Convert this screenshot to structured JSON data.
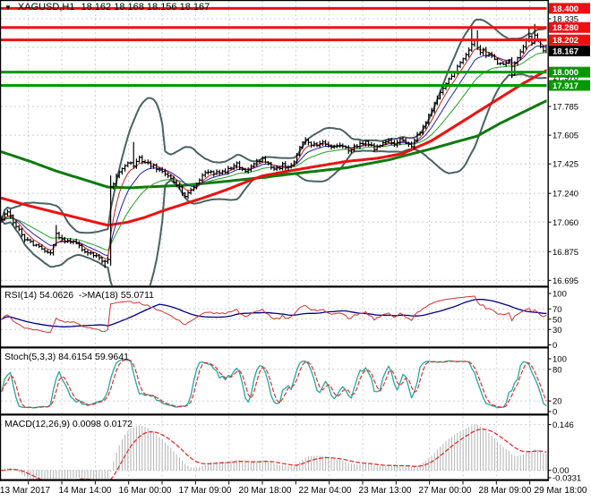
{
  "header": {
    "symbol_period": "XAGUSD,H1",
    "quotes": "18.162 18.168 18.156 18.167",
    "collapse_icon": "triangle-down"
  },
  "colors": {
    "level_red": "#ee1010",
    "level_green": "#009a00",
    "band": "#4a6361",
    "bar_black": "#000000",
    "ma_red": "#ee1010",
    "ma_green": "#0e7a0e",
    "ema_fast_red": "#c82020",
    "ema_mid_blue": "#2222aa",
    "ema_slow_green": "#22a022",
    "rsi_line": "#d23333",
    "rsi_ma": "#000080",
    "stoch_k": "#22a8a0",
    "stoch_d": "#e03030",
    "macd_hist": "#b2b2b2",
    "macd_signal": "#e03030",
    "grid": "#cdcdcd",
    "badge_current_bg": "#000000",
    "badge_text": "#ffffff",
    "axis_text": "#000000"
  },
  "chart_data": {
    "type": "candlestick",
    "symbol": "XAGUSD",
    "timeframe": "H1",
    "ohlc_display": {
      "open": "18.162",
      "high": "18.168",
      "low": "18.156",
      "close": "18.167"
    },
    "bars": 191,
    "x_labels": [
      "13 Mar 2017",
      "14 Mar 14:00",
      "16 Mar 00:00",
      "17 Mar 09:00",
      "20 Mar 18:00",
      "22 Mar 04:00",
      "23 Mar 13:00",
      "27 Mar 00:00",
      "28 Mar 09:00",
      "29 Mar 18:00"
    ],
    "price_axis": {
      "tick_labels": [
        18.335,
        17.785,
        17.605,
        17.425,
        17.24,
        17.06,
        16.875,
        16.695
      ],
      "hidden_label": 17.97,
      "grid_values": [
        18.335,
        18.155,
        17.97,
        17.785,
        17.605,
        17.425,
        17.24,
        17.06,
        16.875,
        16.695
      ]
    },
    "levels": {
      "resistance": [
        18.4,
        18.28,
        18.202
      ],
      "support": [
        18.0,
        17.917
      ],
      "current_price": 18.167
    },
    "close_keyframes": [
      [
        0,
        17.08
      ],
      [
        2,
        17.13
      ],
      [
        5,
        17.03
      ],
      [
        8,
        16.96
      ],
      [
        11,
        16.92
      ],
      [
        14,
        16.89
      ],
      [
        17,
        16.86
      ],
      [
        19,
        16.99
      ],
      [
        22,
        16.93
      ],
      [
        25,
        16.95
      ],
      [
        28,
        16.89
      ],
      [
        31,
        16.87
      ],
      [
        34,
        16.84
      ],
      [
        36,
        16.81
      ],
      [
        37,
        16.83
      ],
      [
        38,
        17.28
      ],
      [
        40,
        17.34
      ],
      [
        42,
        17.4
      ],
      [
        44,
        17.44
      ],
      [
        46,
        17.41
      ],
      [
        48,
        17.46
      ],
      [
        50,
        17.44
      ],
      [
        53,
        17.41
      ],
      [
        56,
        17.37
      ],
      [
        59,
        17.33
      ],
      [
        62,
        17.28
      ],
      [
        64,
        17.22
      ],
      [
        66,
        17.26
      ],
      [
        68,
        17.31
      ],
      [
        70,
        17.35
      ],
      [
        73,
        17.38
      ],
      [
        76,
        17.36
      ],
      [
        79,
        17.39
      ],
      [
        82,
        17.42
      ],
      [
        85,
        17.38
      ],
      [
        88,
        17.43
      ],
      [
        91,
        17.45
      ],
      [
        94,
        17.41
      ],
      [
        96,
        17.39
      ],
      [
        98,
        17.42
      ],
      [
        100,
        17.4
      ],
      [
        102,
        17.44
      ],
      [
        104,
        17.54
      ],
      [
        106,
        17.57
      ],
      [
        109,
        17.54
      ],
      [
        112,
        17.56
      ],
      [
        115,
        17.53
      ],
      [
        118,
        17.55
      ],
      [
        121,
        17.51
      ],
      [
        124,
        17.54
      ],
      [
        127,
        17.56
      ],
      [
        130,
        17.52
      ],
      [
        133,
        17.55
      ],
      [
        135,
        17.57
      ],
      [
        137,
        17.55
      ],
      [
        139,
        17.58
      ],
      [
        141,
        17.56
      ],
      [
        143,
        17.54
      ],
      [
        145,
        17.6
      ],
      [
        147,
        17.66
      ],
      [
        149,
        17.72
      ],
      [
        151,
        17.8
      ],
      [
        153,
        17.88
      ],
      [
        155,
        17.93
      ],
      [
        157,
        17.98
      ],
      [
        159,
        18.03
      ],
      [
        161,
        18.09
      ],
      [
        163,
        18.14
      ],
      [
        165,
        18.2
      ],
      [
        166,
        18.16
      ],
      [
        167,
        18.12
      ],
      [
        168,
        18.15
      ],
      [
        169,
        18.11
      ],
      [
        171,
        18.1
      ],
      [
        173,
        18.06
      ],
      [
        175,
        18.05
      ],
      [
        177,
        18.07
      ],
      [
        178,
        17.99
      ],
      [
        179,
        18.05
      ],
      [
        181,
        18.12
      ],
      [
        183,
        18.2
      ],
      [
        184,
        18.23
      ],
      [
        185,
        18.19
      ],
      [
        186,
        18.24
      ],
      [
        187,
        18.2
      ],
      [
        188,
        18.16
      ],
      [
        189,
        18.14
      ],
      [
        190,
        18.167
      ]
    ],
    "high_overrides": {
      "19": 17.04,
      "38": 17.35,
      "46": 17.56,
      "164": 18.27,
      "166": 18.26,
      "184": 18.28,
      "186": 18.3
    },
    "low_overrides": {
      "36": 16.775,
      "38": 16.79,
      "178": 17.965
    },
    "ma_red_keyframes": [
      [
        0,
        17.21
      ],
      [
        10,
        17.16
      ],
      [
        19,
        17.12
      ],
      [
        28,
        17.08
      ],
      [
        37,
        17.04
      ],
      [
        44,
        17.06
      ],
      [
        50,
        17.09
      ],
      [
        56,
        17.13
      ],
      [
        63,
        17.17
      ],
      [
        70,
        17.21
      ],
      [
        78,
        17.26
      ],
      [
        85,
        17.31
      ],
      [
        91,
        17.35
      ],
      [
        100,
        17.38
      ],
      [
        110,
        17.41
      ],
      [
        120,
        17.44
      ],
      [
        131,
        17.46
      ],
      [
        140,
        17.49
      ],
      [
        150,
        17.57
      ],
      [
        158,
        17.66
      ],
      [
        166,
        17.75
      ],
      [
        174,
        17.84
      ],
      [
        182,
        17.93
      ],
      [
        190,
        18.01
      ]
    ],
    "ma_green_keyframes": [
      [
        0,
        17.5
      ],
      [
        10,
        17.44
      ],
      [
        19,
        17.38
      ],
      [
        28,
        17.33
      ],
      [
        37,
        17.28
      ],
      [
        45,
        17.275
      ],
      [
        50,
        17.28
      ],
      [
        63,
        17.29
      ],
      [
        78,
        17.315
      ],
      [
        91,
        17.34
      ],
      [
        105,
        17.37
      ],
      [
        120,
        17.4
      ],
      [
        135,
        17.45
      ],
      [
        150,
        17.52
      ],
      [
        158,
        17.56
      ],
      [
        166,
        17.6
      ],
      [
        174,
        17.68
      ],
      [
        182,
        17.75
      ],
      [
        190,
        17.82
      ]
    ],
    "indicators": [
      {
        "name": "RSI",
        "label": "RSI(14) 54.0626  ->MA(18) 55.0711",
        "period": 14,
        "ma_period": 18,
        "value": 54.0626,
        "ma_value": 55.0711,
        "levels": [
          70,
          50,
          30
        ],
        "scale": [
          100,
          70,
          50,
          30,
          0
        ]
      },
      {
        "name": "Stochastic",
        "label": "Stoch(5,3,3) 84.6154 59.9641",
        "params": [
          5,
          3,
          3
        ],
        "value_k": 84.6154,
        "value_d": 59.9641,
        "levels": [
          80,
          20
        ],
        "scale": [
          100,
          80,
          20,
          0
        ]
      },
      {
        "name": "MACD",
        "label": "MACD(12,26,9) 0.0098 0.0172",
        "params": [
          12,
          26,
          9
        ],
        "value": 0.0098,
        "signal": 0.0172,
        "scale_labels": [
          "0.146",
          "0.00",
          "-0.0331"
        ],
        "scale_values": [
          0.146,
          0.0,
          -0.0331
        ]
      }
    ]
  }
}
